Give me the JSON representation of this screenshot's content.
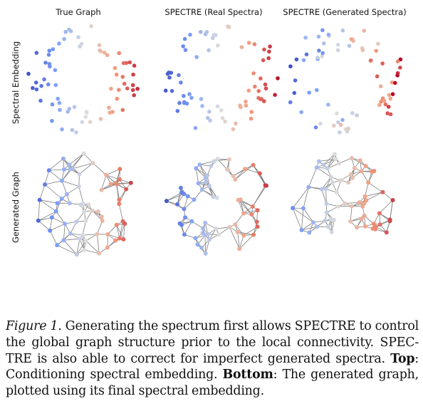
{
  "figure": {
    "column_titles": [
      "True Graph",
      "SPECTRE (Real Spectra)",
      "SPECTRE (Generated Spectra)"
    ],
    "row_labels": [
      "Spectral Embedding",
      "Generated Graph"
    ]
  },
  "caption": {
    "label": "Figure 1.",
    "text_1": " Generating the spectrum first allows SPECTRE to control the global graph structure prior to the local connectivity. SPEC-TRE is also able to correct for imperfect generated spectra. ",
    "top_label": "Top",
    "text_2": ": Conditioning spectral embedding. ",
    "bottom_label": "Bottom",
    "text_3": ": The generated graph, plotted using its final spectral embedding."
  }
}
